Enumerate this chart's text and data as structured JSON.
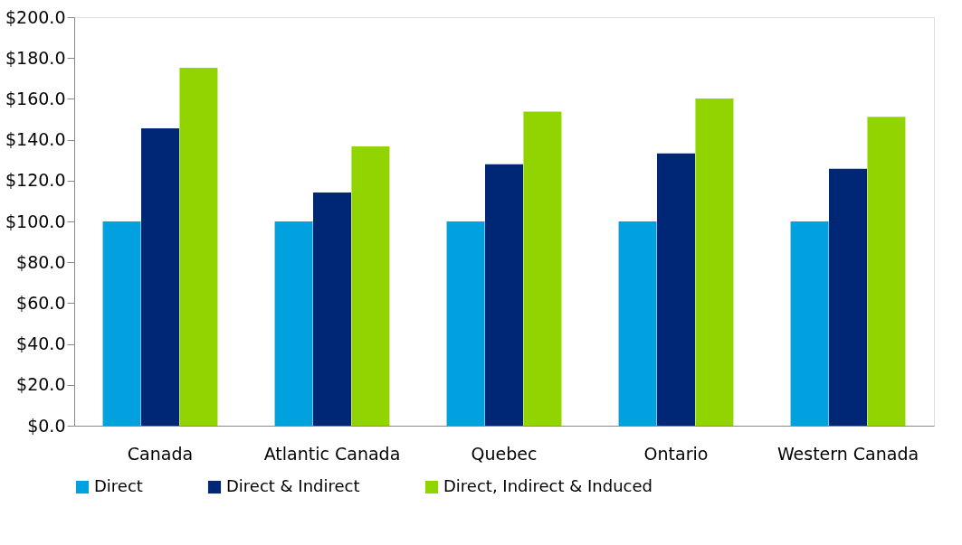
{
  "chart_data": {
    "type": "bar",
    "categories": [
      "Canada",
      "Atlantic Canada",
      "Quebec",
      "Ontario",
      "Western Canada"
    ],
    "series": [
      {
        "name": "Direct",
        "color": "#00a1de",
        "values": [
          100,
          100,
          100,
          100,
          100
        ]
      },
      {
        "name": "Direct & Indirect",
        "color": "#002776",
        "values": [
          145.6,
          114.2,
          128,
          133.3,
          125.8
        ]
      },
      {
        "name": "Direct, Indirect & Induced",
        "color": "#92d400",
        "values": [
          175.2,
          136.7,
          153.8,
          160.2,
          151.2
        ]
      }
    ],
    "ylim": [
      0,
      200
    ],
    "yticks": [
      {
        "value": 0,
        "label": "$0.0"
      },
      {
        "value": 20,
        "label": "$20.0"
      },
      {
        "value": 40,
        "label": "$40.0"
      },
      {
        "value": 60,
        "label": "$60.0"
      },
      {
        "value": 80,
        "label": "$80.0"
      },
      {
        "value": 100,
        "label": "$100.0"
      },
      {
        "value": 120,
        "label": "$120.0"
      },
      {
        "value": 140,
        "label": "$140.0"
      },
      {
        "value": 160,
        "label": "$160.0"
      },
      {
        "value": 180,
        "label": "$180.0"
      },
      {
        "value": 200,
        "label": "$200.0"
      }
    ],
    "grid": false,
    "legend": "bottom"
  }
}
